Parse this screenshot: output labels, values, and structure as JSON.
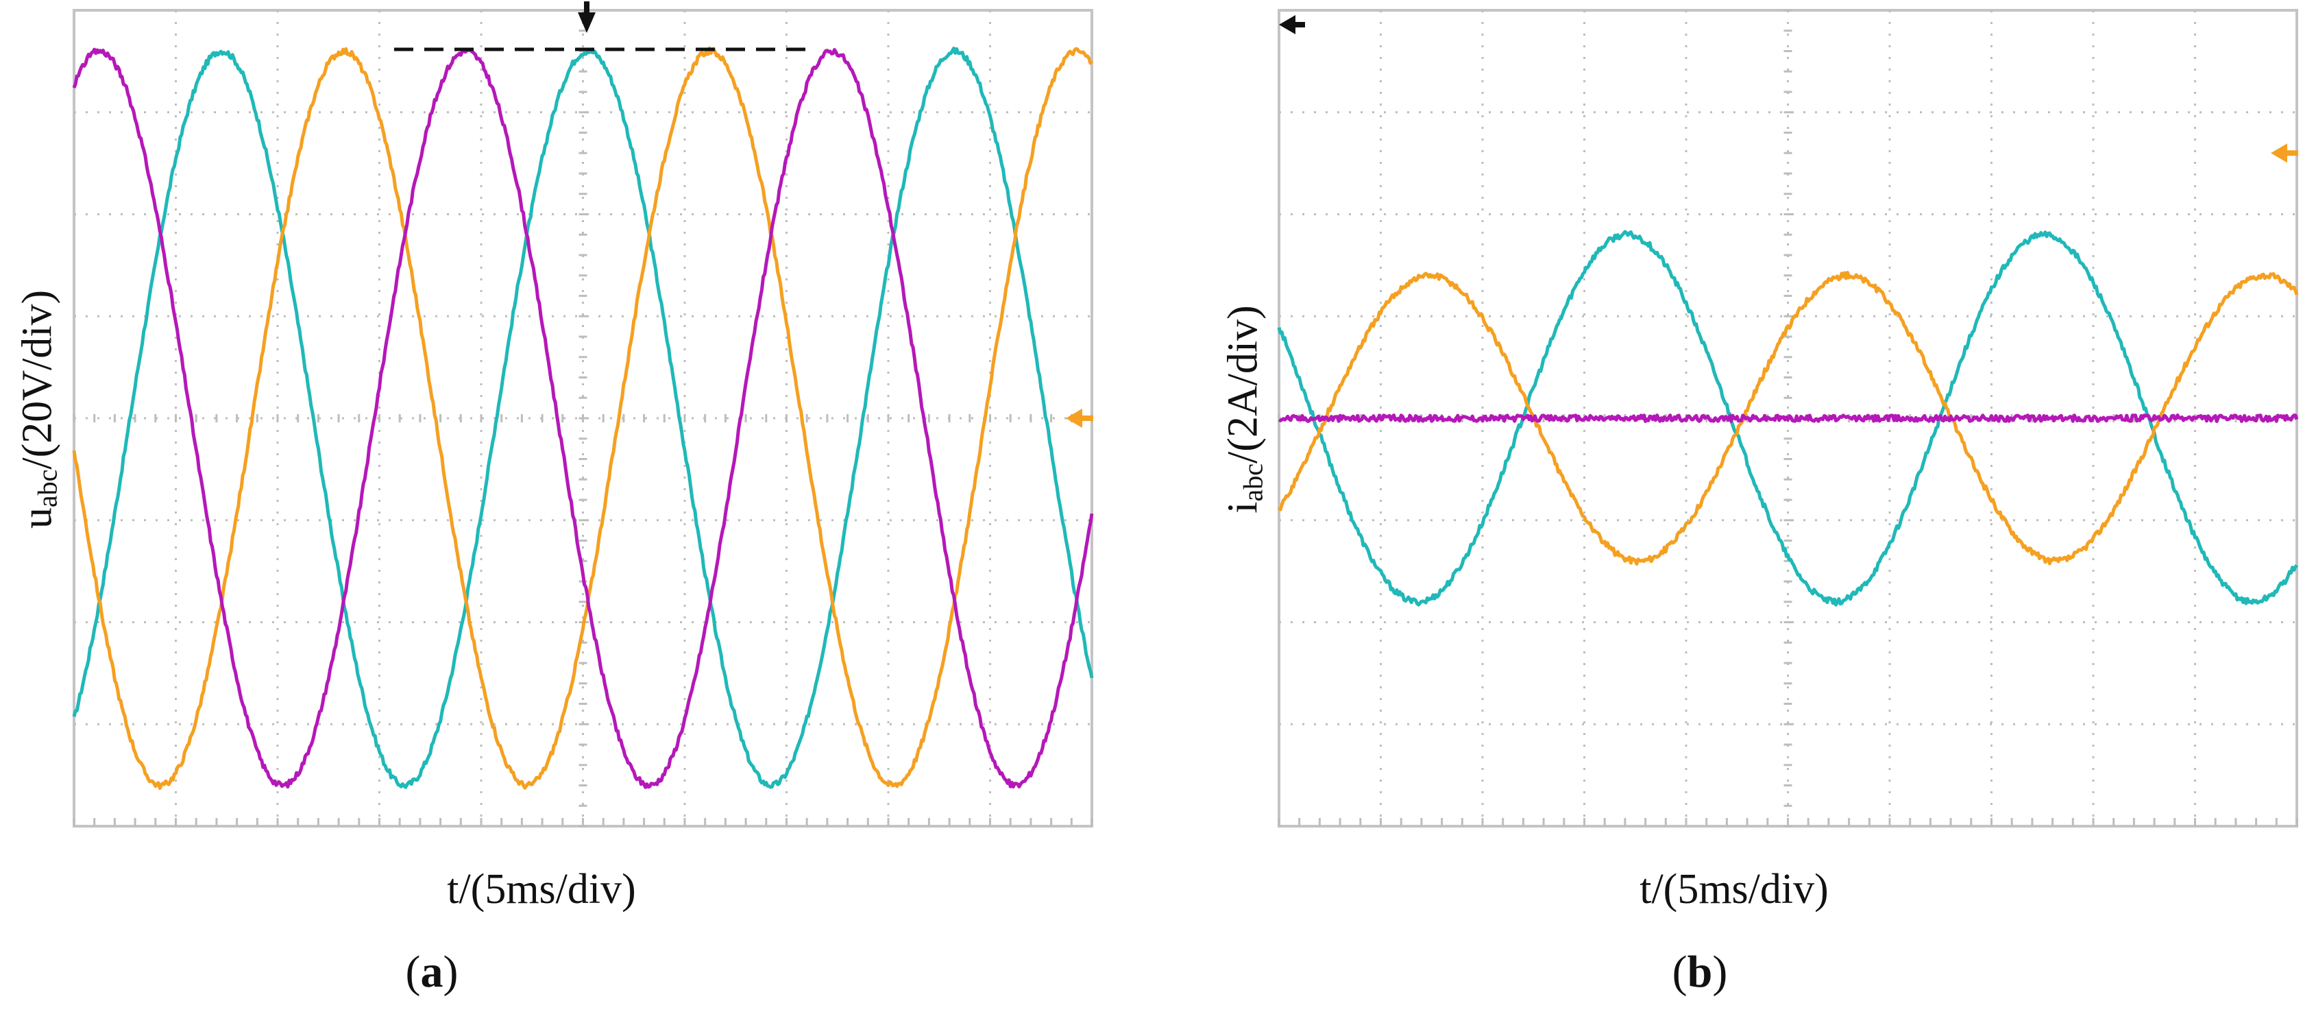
{
  "colors": {
    "phase_a": "#20b8b8",
    "phase_b": "#f5a021",
    "phase_c": "#b518b8",
    "grid": "#bdbdbd",
    "frame": "#c4c4c4"
  },
  "chart_data": [
    {
      "type": "line",
      "panel_label": "a",
      "ylabel_main": "u",
      "ylabel_sub": "abc",
      "ylabel_rest": "/(20V/div)",
      "xlabel": "t/(5ms/div)",
      "grid": true,
      "x_unit": "div",
      "y_unit": "div",
      "xlim": [
        0,
        10
      ],
      "ylim": [
        -4,
        4
      ],
      "series": [
        {
          "color_key": "phase_a",
          "amplitude_div": 3.6,
          "period_div": 3.6,
          "phase_deg": -55,
          "offset_div": 0
        },
        {
          "color_key": "phase_b",
          "amplitude_div": 3.6,
          "period_div": 3.6,
          "phase_deg": 185,
          "offset_div": 0
        },
        {
          "color_key": "phase_c",
          "amplitude_div": 3.6,
          "period_div": 3.6,
          "phase_deg": 65,
          "offset_div": 0
        }
      ],
      "annotations": {
        "peak_reference_line": true,
        "trigger_marker": true,
        "level_marker": true
      }
    },
    {
      "type": "line",
      "panel_label": "b",
      "ylabel_main": "i",
      "ylabel_sub": "abc",
      "ylabel_rest": "/(2A/div)",
      "xlabel": "t/(5ms/div)",
      "grid": true,
      "x_unit": "div",
      "y_unit": "div",
      "xlim": [
        0,
        10
      ],
      "ylim": [
        -4,
        4
      ],
      "series": [
        {
          "color_key": "phase_a",
          "amplitude_div": 1.8,
          "period_div": 4.1,
          "phase_deg": 150,
          "offset_div": 0
        },
        {
          "color_key": "phase_b",
          "amplitude_div": 1.4,
          "period_div": 4.1,
          "phase_deg": -40,
          "offset_div": 0
        },
        {
          "color_key": "phase_c",
          "amplitude_div": 0.0,
          "period_div": 4.1,
          "phase_deg": 0,
          "offset_div": 0
        }
      ],
      "annotations": {
        "trigger_marker": true,
        "level_marker": true
      }
    }
  ]
}
